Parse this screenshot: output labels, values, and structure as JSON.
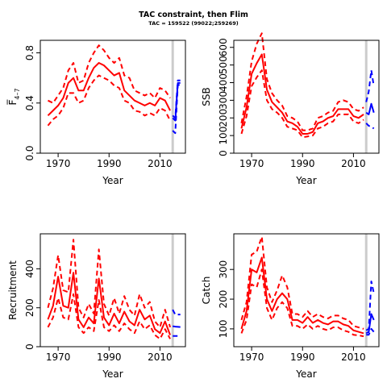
{
  "figure": {
    "title": "TAC constraint, then Flim",
    "subtitle": "TAC = 159522 (99022;259269)"
  },
  "colors": {
    "history": "#ff0000",
    "projection": "#0000ff",
    "divider": "#cccccc"
  },
  "chart_data": [
    {
      "type": "line",
      "panel": "F",
      "position": "top-left",
      "xlabel": "Year",
      "ylabel": "F̅ 4–7",
      "ylabel_main": "F̅",
      "ylabel_sub": "4–7",
      "xlim": [
        1963,
        2020
      ],
      "ylim": [
        0,
        0.9
      ],
      "xticks": [
        1970,
        1990,
        2010
      ],
      "xtick_labels": [
        "1970",
        "1990",
        "2010"
      ],
      "yticks": [
        0,
        0.4,
        0.8
      ],
      "ytick_labels": [
        "0.0",
        "0.4",
        "0.8"
      ],
      "divider_year": 2015,
      "history_x": [
        1966,
        1968,
        1970,
        1972,
        1974,
        1976,
        1978,
        1980,
        1982,
        1984,
        1986,
        1988,
        1990,
        1992,
        1994,
        1996,
        1998,
        2000,
        2002,
        2004,
        2006,
        2008,
        2010,
        2012,
        2014
      ],
      "series": [
        {
          "name": "estimate",
          "values": [
            0.3,
            0.34,
            0.38,
            0.44,
            0.56,
            0.6,
            0.5,
            0.5,
            0.6,
            0.68,
            0.72,
            0.7,
            0.66,
            0.62,
            0.64,
            0.5,
            0.46,
            0.42,
            0.4,
            0.38,
            0.4,
            0.38,
            0.44,
            0.42,
            0.34
          ]
        },
        {
          "name": "upper",
          "values": [
            0.42,
            0.4,
            0.46,
            0.52,
            0.66,
            0.72,
            0.56,
            0.58,
            0.72,
            0.8,
            0.86,
            0.82,
            0.76,
            0.72,
            0.76,
            0.62,
            0.6,
            0.5,
            0.48,
            0.46,
            0.48,
            0.44,
            0.52,
            0.5,
            0.44
          ]
        },
        {
          "name": "lower",
          "values": [
            0.22,
            0.27,
            0.3,
            0.36,
            0.48,
            0.48,
            0.4,
            0.42,
            0.52,
            0.58,
            0.62,
            0.6,
            0.58,
            0.54,
            0.52,
            0.42,
            0.4,
            0.34,
            0.33,
            0.3,
            0.32,
            0.3,
            0.36,
            0.34,
            0.26
          ]
        }
      ],
      "projection_x": [
        2015,
        2016,
        2017,
        2018
      ],
      "projection": [
        {
          "name": "estimate",
          "values": [
            0.28,
            0.26,
            0.56,
            0.56
          ]
        },
        {
          "name": "upper",
          "values": [
            0.3,
            0.28,
            0.58,
            0.58
          ]
        },
        {
          "name": "lower",
          "values": [
            0.18,
            0.16,
            0.54,
            0.55
          ]
        }
      ]
    },
    {
      "type": "line",
      "panel": "SSB",
      "position": "top-right",
      "xlabel": "Year",
      "ylabel": "SSB",
      "xlim": [
        1963,
        2020
      ],
      "ylim": [
        0,
        640
      ],
      "xticks": [
        1970,
        1990,
        2010
      ],
      "xtick_labels": [
        "1970",
        "1990",
        "2010"
      ],
      "yticks": [
        0,
        100,
        200,
        300,
        400,
        500,
        600
      ],
      "ytick_labels": [
        "0",
        "100",
        "200",
        "300",
        "400",
        "500",
        "600"
      ],
      "divider_year": 2015,
      "history_x": [
        1966,
        1968,
        1970,
        1972,
        1974,
        1976,
        1978,
        1980,
        1982,
        1984,
        1986,
        1988,
        1990,
        1992,
        1994,
        1996,
        1998,
        2000,
        2002,
        2004,
        2006,
        2008,
        2010,
        2012,
        2014
      ],
      "series": [
        {
          "name": "estimate",
          "values": [
            140,
            260,
            450,
            510,
            560,
            360,
            290,
            260,
            230,
            180,
            170,
            150,
            110,
            110,
            120,
            170,
            180,
            200,
            210,
            250,
            250,
            250,
            210,
            200,
            220
          ]
        },
        {
          "name": "upper",
          "values": [
            170,
            320,
            520,
            620,
            680,
            420,
            340,
            300,
            270,
            210,
            200,
            180,
            130,
            130,
            140,
            200,
            210,
            230,
            240,
            290,
            300,
            290,
            250,
            240,
            260
          ]
        },
        {
          "name": "lower",
          "values": [
            110,
            210,
            380,
            430,
            470,
            300,
            250,
            230,
            200,
            150,
            140,
            130,
            90,
            95,
            100,
            140,
            150,
            170,
            180,
            220,
            220,
            220,
            180,
            170,
            190
          ]
        }
      ],
      "projection_x": [
        2015,
        2016,
        2017,
        2018
      ],
      "projection": [
        {
          "name": "estimate",
          "values": [
            230,
            220,
            280,
            230
          ]
        },
        {
          "name": "upper",
          "values": [
            290,
            350,
            470,
            380
          ]
        },
        {
          "name": "lower",
          "values": [
            170,
            155,
            150,
            140
          ]
        }
      ]
    },
    {
      "type": "line",
      "panel": "Recruitment",
      "position": "bottom-left",
      "xlabel": "Year",
      "ylabel": "Recruitment",
      "xlim": [
        1963,
        2020
      ],
      "ylim": [
        0,
        580
      ],
      "xticks": [
        1970,
        1990,
        2010
      ],
      "xtick_labels": [
        "1970",
        "1990",
        "2010"
      ],
      "yticks": [
        0,
        200,
        400
      ],
      "ytick_labels": [
        "0",
        "200",
        "400"
      ],
      "divider_year": 2015,
      "history_x": [
        1966,
        1968,
        1970,
        1972,
        1974,
        1976,
        1978,
        1980,
        1982,
        1984,
        1986,
        1988,
        1990,
        1992,
        1994,
        1996,
        1998,
        2000,
        2002,
        2004,
        2006,
        2008,
        2010,
        2012,
        2014
      ],
      "series": [
        {
          "name": "estimate",
          "values": [
            140,
            210,
            360,
            210,
            200,
            380,
            140,
            100,
            150,
            120,
            350,
            150,
            110,
            170,
            120,
            180,
            130,
            110,
            190,
            140,
            160,
            90,
            70,
            130,
            60
          ]
        },
        {
          "name": "upper",
          "values": [
            200,
            300,
            470,
            290,
            280,
            550,
            200,
            150,
            220,
            170,
            500,
            220,
            160,
            250,
            170,
            260,
            190,
            160,
            270,
            200,
            230,
            130,
            100,
            190,
            100
          ]
        },
        {
          "name": "lower",
          "values": [
            100,
            150,
            250,
            150,
            140,
            270,
            100,
            70,
            100,
            80,
            240,
            100,
            80,
            110,
            80,
            120,
            90,
            70,
            130,
            90,
            110,
            60,
            40,
            90,
            40
          ]
        }
      ],
      "projection_x": [
        2015,
        2016,
        2017,
        2018
      ],
      "projection": [
        {
          "name": "estimate",
          "values": [
            105,
            103,
            102,
            101
          ]
        },
        {
          "name": "upper",
          "values": [
            190,
            165,
            165,
            165
          ]
        },
        {
          "name": "lower",
          "values": [
            55,
            55,
            55,
            55
          ]
        }
      ]
    },
    {
      "type": "line",
      "panel": "Catch",
      "position": "bottom-right",
      "xlabel": "Year",
      "ylabel": "Catch",
      "xlim": [
        1963,
        2020
      ],
      "ylim": [
        40,
        420
      ],
      "xticks": [
        1970,
        1990,
        2010
      ],
      "xtick_labels": [
        "1970",
        "1990",
        "2010"
      ],
      "yticks": [
        100,
        200,
        300
      ],
      "ytick_labels": [
        "100",
        "200",
        "300"
      ],
      "divider_year": 2015,
      "history_x": [
        1966,
        1968,
        1970,
        1972,
        1974,
        1976,
        1978,
        1980,
        1982,
        1984,
        1986,
        1988,
        1990,
        1992,
        1994,
        1996,
        1998,
        2000,
        2002,
        2004,
        2006,
        2008,
        2010,
        2012,
        2014
      ],
      "series": [
        {
          "name": "estimate",
          "values": [
            100,
            160,
            300,
            290,
            340,
            200,
            160,
            200,
            220,
            200,
            130,
            130,
            120,
            140,
            120,
            130,
            120,
            115,
            125,
            125,
            115,
            110,
            95,
            90,
            85
          ]
        },
        {
          "name": "upper",
          "values": [
            130,
            190,
            350,
            360,
            410,
            240,
            190,
            230,
            280,
            240,
            150,
            150,
            140,
            160,
            140,
            150,
            140,
            135,
            145,
            145,
            135,
            130,
            110,
            105,
            100
          ]
        },
        {
          "name": "lower",
          "values": [
            85,
            130,
            250,
            240,
            300,
            170,
            130,
            170,
            190,
            170,
            110,
            110,
            100,
            115,
            100,
            110,
            100,
            95,
            105,
            105,
            95,
            90,
            80,
            78,
            75
          ]
        }
      ],
      "projection_x": [
        2015,
        2016,
        2017,
        2018
      ],
      "projection": [
        {
          "name": "estimate",
          "values": [
            85,
            90,
            150,
            130
          ]
        },
        {
          "name": "upper",
          "values": [
            95,
            100,
            260,
            220
          ]
        },
        {
          "name": "lower",
          "values": [
            80,
            80,
            100,
            90
          ]
        }
      ]
    }
  ]
}
